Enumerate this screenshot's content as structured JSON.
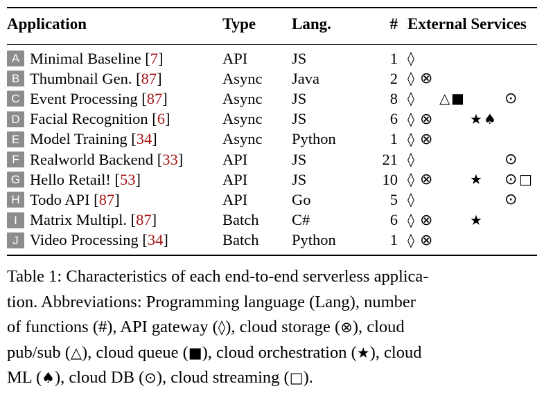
{
  "table": {
    "headers": {
      "application": "Application",
      "type": "Type",
      "lang": "Lang.",
      "num": "#",
      "services": "External Services"
    },
    "symbols": {
      "api": "◊",
      "storage": "⊗",
      "pubsub": "△",
      "queue": "■",
      "orchestration": "★",
      "ml": "♠",
      "db": "⊙",
      "streaming": "□"
    },
    "rows": [
      {
        "id": "A",
        "name": "Minimal Baseline [",
        "cite": "7",
        "close": "]",
        "type": "API",
        "lang": "JS",
        "num": "1"
      },
      {
        "id": "B",
        "name": "Thumbnail Gen. [",
        "cite": "87",
        "close": "]",
        "type": "Async",
        "lang": "Java",
        "num": "2"
      },
      {
        "id": "C",
        "name": "Event Processing [",
        "cite": "87",
        "close": "]",
        "type": "Async",
        "lang": "JS",
        "num": "8"
      },
      {
        "id": "D",
        "name": "Facial Recognition [",
        "cite": "6",
        "close": "]",
        "type": "Async",
        "lang": "JS",
        "num": "6"
      },
      {
        "id": "E",
        "name": "Model Training [",
        "cite": "34",
        "close": "]",
        "type": "Async",
        "lang": "Python",
        "num": "1"
      },
      {
        "id": "F",
        "name": "Realworld Backend [",
        "cite": "33",
        "close": "]",
        "type": "API",
        "lang": "JS",
        "num": "21"
      },
      {
        "id": "G",
        "name": "Hello Retail! [",
        "cite": "53",
        "close": "]",
        "type": "API",
        "lang": "JS",
        "num": "10"
      },
      {
        "id": "H",
        "name": "Todo API [",
        "cite": "87",
        "close": "]",
        "type": "API",
        "lang": "Go",
        "num": "5"
      },
      {
        "id": "I",
        "name": "Matrix Multipl. [",
        "cite": "87",
        "close": "]",
        "type": "Batch",
        "lang": "C#",
        "num": "6"
      },
      {
        "id": "J",
        "name": "Video Processing [",
        "cite": "34",
        "close": "]",
        "type": "Batch",
        "lang": "Python",
        "num": "1"
      }
    ]
  },
  "caption": {
    "l1": "Table 1:  Characteristics of each end-to-end serverless applica-",
    "l2": "tion. Abbreviations: Programming language (Lang), number",
    "l3a": "of functions (#), API gateway (",
    "l3b": "), cloud storage (",
    "l3c": "), cloud",
    "l4a": "pub/sub (",
    "l4b": "), cloud queue (",
    "l4c": "), cloud orchestration (",
    "l4d": "), cloud",
    "l5a": "ML (",
    "l5b": "), cloud DB (",
    "l5c": "), cloud streaming (",
    "l5d": ")."
  }
}
